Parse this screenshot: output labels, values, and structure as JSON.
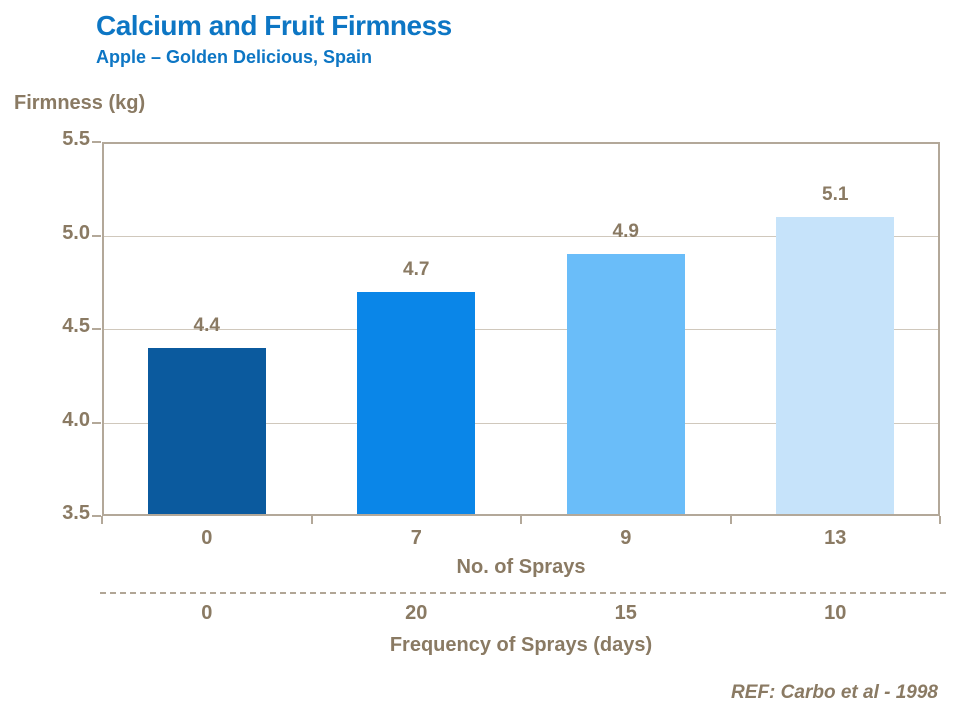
{
  "header": {
    "title": "Calcium and Fruit Firmness",
    "subtitle": "Apple – Golden Delicious, Spain"
  },
  "chart_data": {
    "type": "bar",
    "title": "Calcium and Fruit Firmness",
    "subtitle": "Apple – Golden Delicious, Spain",
    "ylabel": "Firmness (kg)",
    "ylim": [
      3.5,
      5.5
    ],
    "yticks": [
      5.5,
      5.0,
      4.5,
      4.0,
      3.5
    ],
    "ytick_labels": [
      "5.5",
      "5.0",
      "4.5",
      "4.0",
      "3.5"
    ],
    "grid": "horizontal",
    "categories": [
      "0",
      "7",
      "9",
      "13"
    ],
    "values": [
      4.4,
      4.7,
      4.9,
      5.1
    ],
    "bar_value_labels": [
      "4.4",
      "4.7",
      "4.9",
      "5.1"
    ],
    "bar_colors": [
      "#0b5a9e",
      "#0a86e8",
      "#6abdf9",
      "#c6e3fa"
    ],
    "x_axis_title": "No. of Sprays",
    "secondary_categories": [
      "0",
      "20",
      "15",
      "10"
    ],
    "secondary_axis_title": "Frequency of Sprays (days)",
    "legend": "none"
  },
  "footer": {
    "reference": "REF: Carbo et al - 1998"
  },
  "colors": {
    "title_blue": "#0d76c4",
    "text_brown": "#8a7a63",
    "axis_line": "#b3a899",
    "gridline": "#d0c8bc",
    "dashed_divider": "#b1a696"
  }
}
